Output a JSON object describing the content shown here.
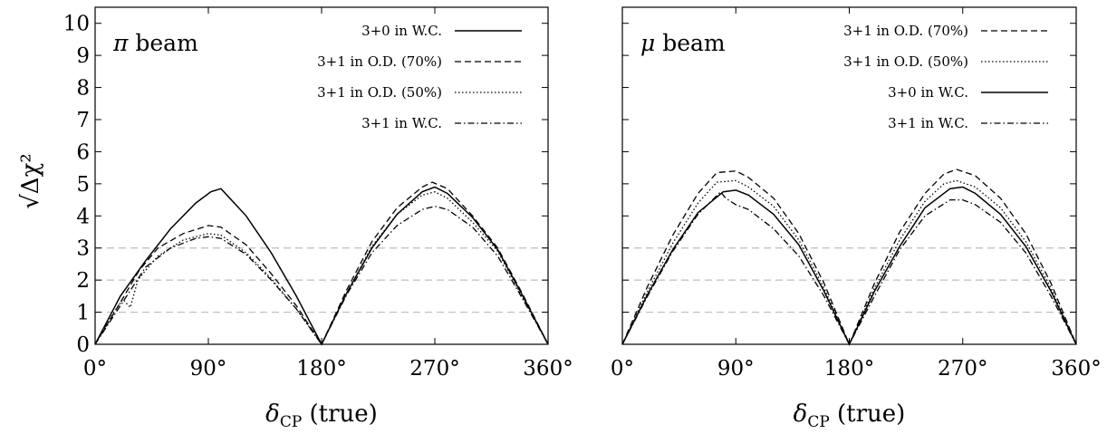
{
  "chart_data": [
    {
      "type": "line",
      "panel_label": "π beam",
      "xlabel": "δ_CP (true)",
      "ylabel": "√Δχ²",
      "xlim": [
        0,
        360
      ],
      "ylim": [
        0,
        10.5
      ],
      "xticks": [
        0,
        90,
        180,
        270,
        360
      ],
      "xtick_labels": [
        "0°",
        "90°",
        "180°",
        "270°",
        "360°"
      ],
      "yticks": [
        0,
        1,
        2,
        3,
        4,
        5,
        6,
        7,
        8,
        9,
        10
      ],
      "ytick_labels": [
        "0",
        "1",
        "2",
        "3",
        "4",
        "5",
        "6",
        "7",
        "8",
        "9",
        "10"
      ],
      "reference_lines": [
        1,
        2,
        3
      ],
      "legend_position": "top-right",
      "series": [
        {
          "name": "3+0 in W.C.",
          "style": "solid",
          "x": [
            0,
            20,
            40,
            60,
            80,
            92,
            100,
            120,
            140,
            160,
            180,
            200,
            220,
            240,
            260,
            270,
            280,
            300,
            320,
            340,
            360
          ],
          "y": [
            0,
            1.5,
            2.6,
            3.6,
            4.4,
            4.75,
            4.85,
            4.0,
            2.85,
            1.5,
            0,
            1.6,
            3.0,
            4.05,
            4.75,
            4.9,
            4.7,
            3.95,
            2.95,
            1.5,
            0
          ]
        },
        {
          "name": "3+1 in O.D. (70%)",
          "style": "dashed",
          "x": [
            0,
            20,
            35,
            50,
            70,
            90,
            100,
            120,
            140,
            160,
            180,
            200,
            220,
            240,
            260,
            268,
            280,
            300,
            320,
            340,
            360
          ],
          "y": [
            0,
            1.3,
            2.3,
            3.0,
            3.45,
            3.7,
            3.65,
            3.1,
            2.2,
            1.2,
            0,
            1.7,
            3.2,
            4.25,
            4.9,
            5.05,
            4.85,
            4.0,
            3.0,
            1.55,
            0
          ]
        },
        {
          "name": "3+1 in O.D. (50%)",
          "style": "dotted",
          "x": [
            0,
            15,
            22,
            28,
            34,
            40,
            50,
            70,
            90,
            100,
            120,
            140,
            160,
            180,
            200,
            220,
            240,
            260,
            270,
            280,
            300,
            320,
            340,
            360
          ],
          "y": [
            0,
            1.0,
            1.4,
            1.15,
            2.0,
            2.3,
            2.75,
            3.25,
            3.45,
            3.4,
            2.85,
            2.05,
            1.1,
            0,
            1.6,
            3.05,
            4.05,
            4.65,
            4.75,
            4.55,
            3.8,
            2.9,
            1.45,
            0
          ]
        },
        {
          "name": "3+1 in W.C.",
          "style": "dashdot",
          "x": [
            0,
            20,
            40,
            60,
            80,
            90,
            100,
            120,
            140,
            160,
            180,
            200,
            220,
            240,
            260,
            270,
            280,
            300,
            320,
            340,
            360
          ],
          "y": [
            0,
            1.2,
            2.4,
            3.0,
            3.3,
            3.35,
            3.3,
            2.8,
            2.0,
            1.1,
            0,
            1.55,
            2.85,
            3.7,
            4.2,
            4.3,
            4.2,
            3.65,
            2.75,
            1.4,
            0
          ]
        }
      ]
    },
    {
      "type": "line",
      "panel_label": "μ beam",
      "xlabel": "δ_CP (true)",
      "ylabel": "",
      "xlim": [
        0,
        360
      ],
      "ylim": [
        0,
        10.5
      ],
      "xticks": [
        0,
        90,
        180,
        270,
        360
      ],
      "xtick_labels": [
        "0°",
        "90°",
        "180°",
        "270°",
        "360°"
      ],
      "yticks": [
        0,
        1,
        2,
        3,
        4,
        5,
        6,
        7,
        8,
        9,
        10
      ],
      "ytick_labels": [],
      "reference_lines": [
        1,
        2,
        3
      ],
      "legend_position": "top-right",
      "series": [
        {
          "name": "3+1 in O.D. (70%)",
          "style": "dashed",
          "x": [
            0,
            20,
            40,
            60,
            75,
            90,
            100,
            120,
            140,
            160,
            180,
            200,
            220,
            240,
            255,
            265,
            280,
            300,
            320,
            340,
            360
          ],
          "y": [
            0,
            1.8,
            3.4,
            4.7,
            5.35,
            5.4,
            5.2,
            4.55,
            3.45,
            1.9,
            0,
            1.9,
            3.5,
            4.7,
            5.3,
            5.45,
            5.25,
            4.55,
            3.45,
            1.9,
            0
          ]
        },
        {
          "name": "3+1 in O.D. (50%)",
          "style": "dotted",
          "x": [
            0,
            20,
            40,
            60,
            75,
            90,
            100,
            120,
            140,
            160,
            180,
            200,
            220,
            240,
            255,
            265,
            280,
            300,
            320,
            340,
            360
          ],
          "y": [
            0,
            1.65,
            3.15,
            4.4,
            5.05,
            5.1,
            4.9,
            4.3,
            3.25,
            1.75,
            0,
            1.75,
            3.25,
            4.45,
            5.0,
            5.1,
            4.9,
            4.25,
            3.2,
            1.75,
            0
          ]
        },
        {
          "name": "3+0 in W.C.",
          "style": "solid",
          "x": [
            0,
            20,
            40,
            60,
            80,
            90,
            100,
            120,
            140,
            160,
            180,
            200,
            220,
            240,
            260,
            270,
            280,
            300,
            320,
            340,
            360
          ],
          "y": [
            0,
            1.55,
            2.95,
            4.1,
            4.75,
            4.8,
            4.65,
            4.05,
            3.1,
            1.65,
            0,
            1.65,
            3.05,
            4.25,
            4.85,
            4.9,
            4.7,
            4.05,
            3.05,
            1.65,
            0
          ]
        },
        {
          "name": "3+1 in W.C.",
          "style": "dashdot",
          "x": [
            0,
            20,
            40,
            60,
            78,
            82,
            90,
            100,
            120,
            140,
            160,
            180,
            200,
            220,
            240,
            260,
            270,
            280,
            300,
            320,
            340,
            360
          ],
          "y": [
            0,
            1.5,
            2.9,
            4.05,
            4.75,
            4.55,
            4.35,
            4.2,
            3.6,
            2.75,
            1.5,
            0,
            1.5,
            2.95,
            4.0,
            4.5,
            4.5,
            4.35,
            3.8,
            2.85,
            1.5,
            0
          ]
        }
      ]
    }
  ]
}
